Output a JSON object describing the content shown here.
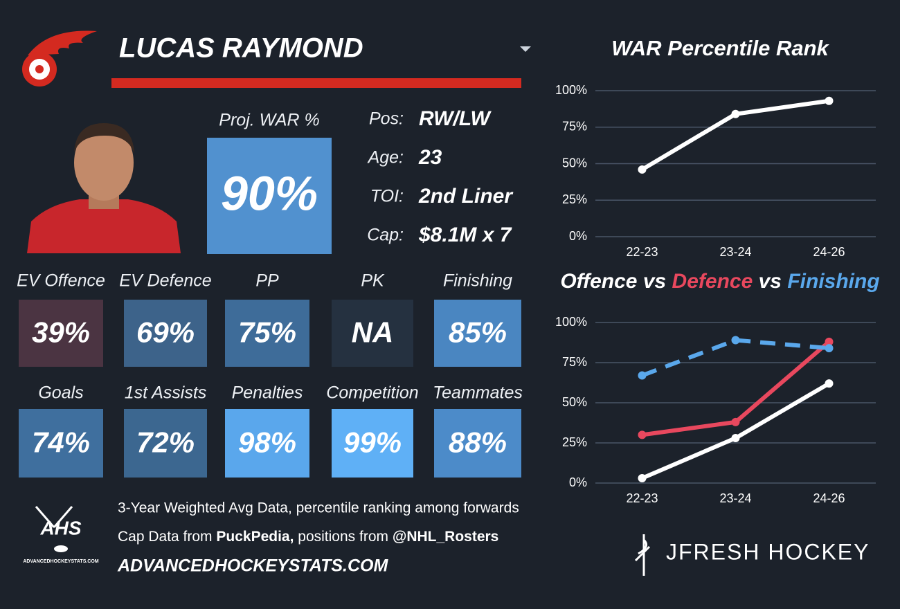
{
  "header": {
    "player": "LUCAS RAYMOND"
  },
  "projection": {
    "label": "Proj. WAR %",
    "value": "90%",
    "color": "#5191cf"
  },
  "info": [
    {
      "label": "Pos:",
      "value": "RW/LW"
    },
    {
      "label": "Age:",
      "value": "23"
    },
    {
      "label": "TOI:",
      "value": "2nd Liner"
    },
    {
      "label": "Cap:",
      "value": "$8.1M x 7"
    }
  ],
  "tiles": [
    {
      "label": "EV Offence",
      "value": "39%",
      "color": "#4b3442"
    },
    {
      "label": "EV Defence",
      "value": "69%",
      "color": "#3d638a"
    },
    {
      "label": "PP",
      "value": "75%",
      "color": "#3e6c99"
    },
    {
      "label": "PK",
      "value": "NA",
      "color": "#253140"
    },
    {
      "label": "Finishing",
      "value": "85%",
      "color": "#4a86c1"
    },
    {
      "label": "Goals",
      "value": "74%",
      "color": "#3f6f9e"
    },
    {
      "label": "1st Assists",
      "value": "72%",
      "color": "#3c6790"
    },
    {
      "label": "Penalties",
      "value": "98%",
      "color": "#5aa7ec"
    },
    {
      "label": "Competition",
      "value": "99%",
      "color": "#5fb0f6"
    },
    {
      "label": "Teammates",
      "value": "88%",
      "color": "#4c8bc9"
    }
  ],
  "footer": {
    "note": "3-Year Weighted Avg Data, percentile ranking among forwards",
    "credits": [
      "Cap Data from ",
      "PuckPedia,",
      " positions from ",
      "@NHL_Rosters"
    ],
    "site": "ADVANCEDHOCKEYSTATS.COM",
    "logo_text": "AHS",
    "logo_caption": "ADVANCEDHOCKEYSTATS.COM",
    "brand": "JFRESH HOCKEY"
  },
  "chart_data": [
    {
      "type": "line",
      "title": "WAR Percentile Rank",
      "categories": [
        "22-23",
        "23-24",
        "24-26"
      ],
      "series": [
        {
          "name": "WAR",
          "color": "#ffffff",
          "values": [
            46,
            84,
            93
          ]
        }
      ],
      "ylim": [
        0,
        100
      ],
      "yticks": [
        {
          "value": 0,
          "label": "0%"
        },
        {
          "value": 25,
          "label": "25%"
        },
        {
          "value": 50,
          "label": "50%"
        },
        {
          "value": 75,
          "label": "75%"
        },
        {
          "value": 100,
          "label": "100%"
        }
      ],
      "grid": true
    },
    {
      "type": "line",
      "title_separator": "vs",
      "categories": [
        "22-23",
        "23-24",
        "24-26"
      ],
      "series": [
        {
          "name": "Offence",
          "color": "#ffffff",
          "values": [
            3,
            28,
            62
          ]
        },
        {
          "name": "Defence",
          "color": "#e8485e",
          "values": [
            30,
            38,
            88
          ]
        },
        {
          "name": "Finishing",
          "color": "#5aa8ec",
          "values": [
            67,
            89,
            84
          ],
          "dashed": true
        }
      ],
      "ylim": [
        0,
        100
      ],
      "yticks": [
        {
          "value": 0,
          "label": "0%"
        },
        {
          "value": 25,
          "label": "25%"
        },
        {
          "value": 50,
          "label": "50%"
        },
        {
          "value": 75,
          "label": "75%"
        },
        {
          "value": 100,
          "label": "100%"
        }
      ],
      "grid": true
    }
  ]
}
